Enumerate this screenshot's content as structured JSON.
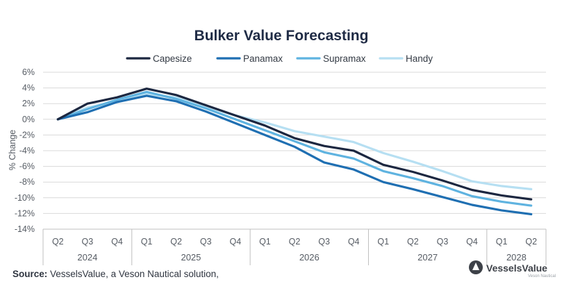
{
  "brand": {
    "name": "VesselsValue",
    "tagline": "Veson Nautical"
  },
  "source": {
    "label": "Source:",
    "text": " VesselsValue, a Veson Nautical solution,"
  },
  "colors": {
    "Capesize": "#1c2740",
    "Panamax": "#1f6fb2",
    "Supramax": "#5fb3e0",
    "Handy": "#b6dff2",
    "grid": "#d9d9d9",
    "title": "#1f2b45"
  },
  "chart_data": {
    "type": "line",
    "title": "Bulker Value Forecasting",
    "xlabel": "",
    "ylabel": "% Change",
    "ylim": [
      -14,
      6
    ],
    "yticks": [
      6,
      4,
      2,
      0,
      -2,
      -4,
      -6,
      -8,
      -10,
      -12,
      -14
    ],
    "yticks_format": "percent",
    "grid": true,
    "legend_position": "top",
    "categories": [
      "Q2",
      "Q3",
      "Q4",
      "Q1",
      "Q2",
      "Q3",
      "Q4",
      "Q1",
      "Q2",
      "Q3",
      "Q4",
      "Q1",
      "Q2",
      "Q3",
      "Q4",
      "Q1",
      "Q2"
    ],
    "category_groups": [
      {
        "label": "2024",
        "span": 3
      },
      {
        "label": "2025",
        "span": 4
      },
      {
        "label": "2026",
        "span": 4
      },
      {
        "label": "2027",
        "span": 4
      },
      {
        "label": "2028",
        "span": 2
      }
    ],
    "series": [
      {
        "name": "Capesize",
        "values": [
          0,
          2.0,
          2.8,
          3.9,
          3.1,
          1.8,
          0.5,
          -0.8,
          -2.4,
          -3.4,
          -4.0,
          -5.8,
          -6.7,
          -7.8,
          -9.0,
          -9.7,
          -10.2
        ]
      },
      {
        "name": "Panamax",
        "values": [
          0,
          0.9,
          2.2,
          3.0,
          2.3,
          1.0,
          -0.5,
          -2.0,
          -3.5,
          -5.5,
          -6.4,
          -8.0,
          -8.9,
          -9.9,
          -10.9,
          -11.6,
          -12.1
        ]
      },
      {
        "name": "Supramax",
        "values": [
          0,
          1.3,
          2.5,
          3.5,
          2.6,
          1.4,
          0.0,
          -1.4,
          -2.8,
          -4.2,
          -5.0,
          -6.6,
          -7.5,
          -8.5,
          -9.8,
          -10.5,
          -11.0
        ]
      },
      {
        "name": "Handy",
        "values": [
          0,
          1.5,
          2.2,
          3.2,
          2.8,
          1.6,
          0.5,
          -0.4,
          -1.5,
          -2.2,
          -2.9,
          -4.3,
          -5.4,
          -6.6,
          -7.9,
          -8.5,
          -8.9
        ]
      }
    ]
  }
}
